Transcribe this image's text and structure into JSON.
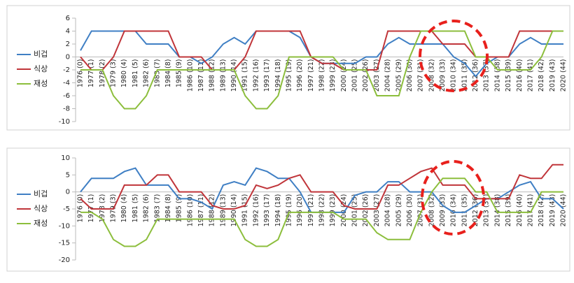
{
  "chart_data": [
    {
      "type": "line",
      "categories": [
        "1976 (0)",
        "1977 (1)",
        "1978 (2)",
        "1979 (3)",
        "1980 (4)",
        "1981 (5)",
        "1982 (6)",
        "1983 (7)",
        "1984 (8)",
        "1985 (9)",
        "1986 (10)",
        "1987 (11)",
        "1988 (12)",
        "1989 (13)",
        "1990 (14)",
        "1991 (15)",
        "1992 (16)",
        "1993 (17)",
        "1994 (18)",
        "1995 (19)",
        "1996 (20)",
        "1997 (21)",
        "1998 (22)",
        "1999 (23)",
        "2000 (24)",
        "2001 (25)",
        "2002 (26)",
        "2003 (27)",
        "2004 (28)",
        "2005 (29)",
        "2006 (30)",
        "2007 (31)",
        "2008 (32)",
        "2009 (33)",
        "2010 (34)",
        "2011 (35)",
        "2012 (36)",
        "2013 (37)",
        "2014 (38)",
        "2015 (39)",
        "2016 (40)",
        "2017 (41)",
        "2018 (42)",
        "2019 (43)",
        "2020 (44)"
      ],
      "series": [
        {
          "name": "비겁",
          "color": "#3f7fc4",
          "values": [
            1,
            4,
            4,
            4,
            4,
            4,
            2,
            2,
            2,
            0,
            0,
            -1,
            0,
            2,
            3,
            2,
            4,
            4,
            4,
            4,
            3,
            0,
            -1,
            -1,
            -1,
            -1,
            0,
            0,
            2,
            3,
            2,
            2,
            2,
            2,
            0,
            -1,
            -3,
            -1,
            0,
            0,
            2,
            3,
            2,
            2,
            2
          ]
        },
        {
          "name": "식상",
          "color": "#c0353a",
          "values": [
            0,
            -2,
            -2,
            0,
            4,
            4,
            4,
            4,
            4,
            0,
            0,
            0,
            -2,
            -2,
            -2,
            0,
            4,
            4,
            4,
            4,
            4,
            0,
            -1,
            -1,
            -2,
            -2,
            -2,
            -2,
            4,
            4,
            4,
            4,
            4,
            2,
            2,
            2,
            0,
            0,
            0,
            0,
            4,
            4,
            4,
            4,
            4
          ]
        },
        {
          "name": "재성",
          "color": "#8cbe3c",
          "values": [
            -2,
            -2,
            -2,
            -6,
            -8,
            -8,
            -6,
            -2,
            -2,
            -2,
            -2,
            -2,
            -2,
            -2,
            -2,
            -6,
            -8,
            -8,
            -6,
            0,
            0,
            0,
            0,
            0,
            -2,
            -2,
            -2,
            -6,
            -6,
            -6,
            0,
            4,
            4,
            4,
            4,
            4,
            0,
            0,
            -2,
            -2,
            -2,
            -2,
            0,
            4,
            4
          ]
        }
      ],
      "ylim": [
        -10,
        6
      ],
      "yticks": [
        -10,
        -8,
        -6,
        -4,
        -2,
        0,
        2,
        4,
        6
      ],
      "grid": false
    },
    {
      "type": "line",
      "categories": [
        "1976 (0)",
        "1977 (1)",
        "1978 (2)",
        "1979 (3)",
        "1980 (4)",
        "1981 (5)",
        "1982 (6)",
        "1983 (7)",
        "1984 (8)",
        "1985 (9)",
        "1986 (10)",
        "1987 (11)",
        "1988 (12)",
        "1989 (13)",
        "1990 (14)",
        "1991 (15)",
        "1992 (16)",
        "1993 (17)",
        "1994 (18)",
        "1995 (19)",
        "1996 (20)",
        "1997 (21)",
        "1998 (22)",
        "1999 (23)",
        "2000 (24)",
        "2001 (25)",
        "2002 (26)",
        "2003 (27)",
        "2004 (28)",
        "2005 (29)",
        "2006 (30)",
        "2007 (31)",
        "2008 (32)",
        "2009 (33)",
        "2010 (34)",
        "2011 (35)",
        "2012 (36)",
        "2013 (37)",
        "2014 (38)",
        "2015 (39)",
        "2016 (40)",
        "2017 (41)",
        "2018 (42)",
        "2019 (43)",
        "2020 (44)"
      ],
      "series": [
        {
          "name": "비겁",
          "color": "#3f7fc4",
          "values": [
            0,
            4,
            4,
            4,
            6,
            7,
            2,
            2,
            2,
            -2,
            -2,
            -3,
            -5,
            2,
            3,
            2,
            7,
            6,
            4,
            4,
            0,
            -6,
            -6,
            -6,
            -6,
            -1,
            0,
            0,
            3,
            3,
            0,
            0,
            0,
            -4,
            -6,
            -6,
            -4,
            -2,
            -2,
            0,
            2,
            3,
            -2,
            -2,
            -5
          ]
        },
        {
          "name": "식상",
          "color": "#c0353a",
          "values": [
            -2,
            -5,
            -5,
            -5,
            2,
            2,
            2,
            5,
            5,
            0,
            0,
            0,
            -4,
            -5,
            -5,
            -4,
            2,
            1,
            2,
            4,
            5,
            0,
            0,
            0,
            -4,
            -5,
            -5,
            -5,
            2,
            2,
            4,
            6,
            7,
            2,
            2,
            2,
            -2,
            -2,
            -2,
            -2,
            5,
            4,
            4,
            8,
            8
          ]
        },
        {
          "name": "재성",
          "color": "#8cbe3c",
          "values": [
            -6,
            -6,
            -8,
            -14,
            -16,
            -16,
            -14,
            -8,
            -8,
            -8,
            -8,
            -8,
            -8,
            -8,
            -8,
            -14,
            -16,
            -16,
            -14,
            -6,
            -6,
            -6,
            -6,
            -6,
            -8,
            -8,
            -8,
            -12,
            -14,
            -14,
            -14,
            -6,
            0,
            4,
            4,
            4,
            0,
            0,
            -6,
            -6,
            -6,
            -6,
            0,
            0,
            0
          ]
        }
      ],
      "ylim": [
        -20,
        10
      ],
      "yticks": [
        -20,
        -15,
        -10,
        -5,
        0,
        5,
        10
      ],
      "grid": false
    }
  ]
}
